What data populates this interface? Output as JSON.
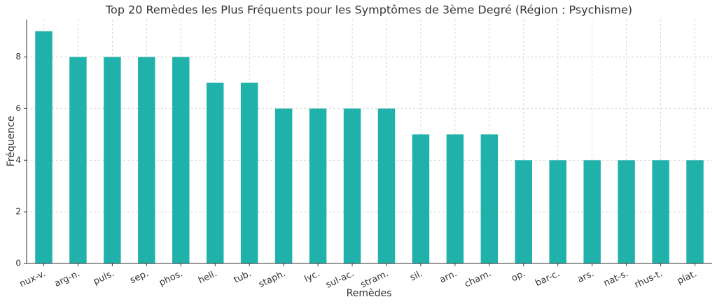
{
  "chart_data": {
    "type": "bar",
    "title": "Top 20 Remèdes les Plus Fréquents pour les Symptômes de 3ème Degré (Région : Psychisme)",
    "x_label": "Remèdes",
    "y_label": "Fréquence",
    "categories": [
      "nux-v.",
      "arg-n.",
      "puls.",
      "sep.",
      "phos.",
      "hell.",
      "tub.",
      "staph.",
      "lyc.",
      "sul-ac.",
      "stram.",
      "sil.",
      "arn.",
      "cham.",
      "op.",
      "bar-c.",
      "ars.",
      "nat-s.",
      "rhus-t.",
      "plat."
    ],
    "values": [
      9,
      8,
      8,
      8,
      8,
      7,
      7,
      6,
      6,
      6,
      6,
      5,
      5,
      5,
      4,
      4,
      4,
      4,
      4,
      4
    ],
    "color": "#20b2aa",
    "ylim": [
      0,
      9.45
    ],
    "yticks": [
      0,
      2,
      4,
      6,
      8
    ],
    "grid": true
  }
}
